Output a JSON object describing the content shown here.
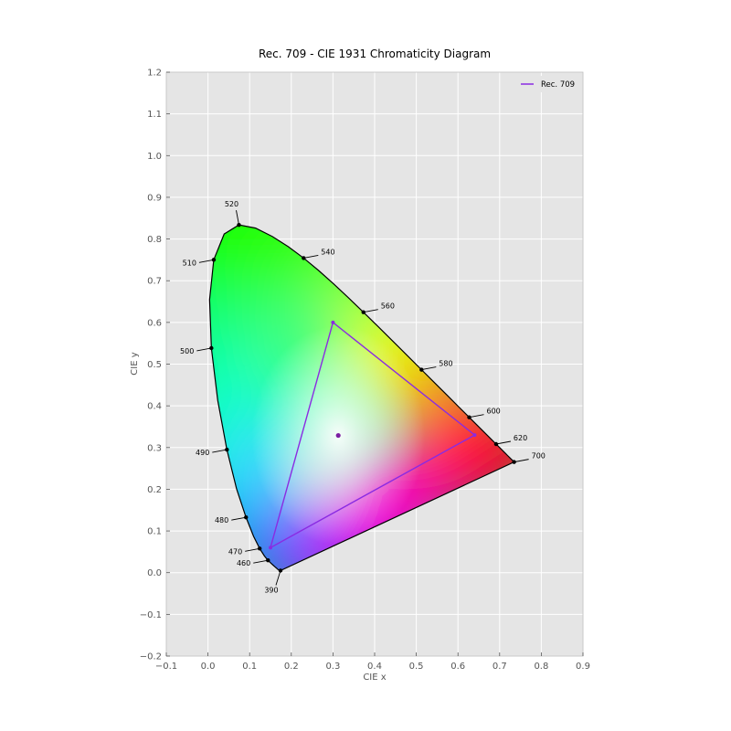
{
  "chart_data": {
    "type": "scatter",
    "title": "Rec. 709 - CIE 1931 Chromaticity Diagram",
    "xlabel": "CIE x",
    "ylabel": "CIE y",
    "xlim": [
      -0.1,
      0.9
    ],
    "ylim": [
      -0.2,
      1.2
    ],
    "x_ticks": [
      "−0.1",
      "0.0",
      "0.1",
      "0.2",
      "0.3",
      "0.4",
      "0.5",
      "0.6",
      "0.7",
      "0.8",
      "0.9"
    ],
    "y_ticks": [
      "−0.2",
      "−0.1",
      "0.0",
      "0.1",
      "0.2",
      "0.3",
      "0.4",
      "0.5",
      "0.6",
      "0.7",
      "0.8",
      "0.9",
      "1.0",
      "1.1",
      "1.2"
    ],
    "grid": true,
    "legend_position": "top-right",
    "spectral_locus": [
      [
        0.1741,
        0.005
      ],
      [
        0.174,
        0.005
      ],
      [
        0.1738,
        0.0049
      ],
      [
        0.1736,
        0.0049
      ],
      [
        0.1733,
        0.0048
      ],
      [
        0.173,
        0.0048
      ],
      [
        0.1726,
        0.0048
      ],
      [
        0.1721,
        0.0048
      ],
      [
        0.1714,
        0.0051
      ],
      [
        0.1703,
        0.0058
      ],
      [
        0.1689,
        0.0069
      ],
      [
        0.1669,
        0.0086
      ],
      [
        0.1644,
        0.0109
      ],
      [
        0.1611,
        0.0138
      ],
      [
        0.1566,
        0.0177
      ],
      [
        0.151,
        0.0227
      ],
      [
        0.144,
        0.0297
      ],
      [
        0.1355,
        0.0399
      ],
      [
        0.1241,
        0.0578
      ],
      [
        0.1096,
        0.0868
      ],
      [
        0.0913,
        0.1327
      ],
      [
        0.0687,
        0.2007
      ],
      [
        0.0454,
        0.295
      ],
      [
        0.0235,
        0.4127
      ],
      [
        0.0082,
        0.5384
      ],
      [
        0.0039,
        0.6548
      ],
      [
        0.0139,
        0.7502
      ],
      [
        0.0389,
        0.812
      ],
      [
        0.0743,
        0.8338
      ],
      [
        0.1142,
        0.8262
      ],
      [
        0.1547,
        0.8059
      ],
      [
        0.1929,
        0.7816
      ],
      [
        0.2296,
        0.7543
      ],
      [
        0.2658,
        0.7243
      ],
      [
        0.3016,
        0.6923
      ],
      [
        0.3373,
        0.6589
      ],
      [
        0.3731,
        0.6245
      ],
      [
        0.4087,
        0.5896
      ],
      [
        0.4441,
        0.5547
      ],
      [
        0.4788,
        0.5202
      ],
      [
        0.5125,
        0.4866
      ],
      [
        0.5448,
        0.4544
      ],
      [
        0.5752,
        0.4242
      ],
      [
        0.6029,
        0.3965
      ],
      [
        0.627,
        0.3725
      ],
      [
        0.6482,
        0.3514
      ],
      [
        0.6658,
        0.334
      ],
      [
        0.6801,
        0.3197
      ],
      [
        0.6915,
        0.3083
      ],
      [
        0.7006,
        0.2993
      ],
      [
        0.7079,
        0.292
      ],
      [
        0.714,
        0.2859
      ],
      [
        0.719,
        0.2809
      ],
      [
        0.723,
        0.277
      ],
      [
        0.726,
        0.274
      ],
      [
        0.7283,
        0.2717
      ],
      [
        0.73,
        0.27
      ],
      [
        0.7311,
        0.2689
      ],
      [
        0.732,
        0.268
      ],
      [
        0.7327,
        0.2673
      ],
      [
        0.7334,
        0.2666
      ],
      [
        0.734,
        0.266
      ],
      [
        0.7344,
        0.2656
      ],
      [
        0.7346,
        0.2654
      ],
      [
        0.7347,
        0.2653
      ]
    ],
    "wavelength_labels": [
      {
        "label": "390",
        "x": 0.1741,
        "y": 0.005,
        "dir": "down"
      },
      {
        "label": "460",
        "x": 0.144,
        "y": 0.0297,
        "dir": "left"
      },
      {
        "label": "470",
        "x": 0.1241,
        "y": 0.0578,
        "dir": "left"
      },
      {
        "label": "480",
        "x": 0.0913,
        "y": 0.1327,
        "dir": "left"
      },
      {
        "label": "490",
        "x": 0.0454,
        "y": 0.295,
        "dir": "left"
      },
      {
        "label": "500",
        "x": 0.0082,
        "y": 0.5384,
        "dir": "left"
      },
      {
        "label": "510",
        "x": 0.0139,
        "y": 0.7502,
        "dir": "left"
      },
      {
        "label": "520",
        "x": 0.0743,
        "y": 0.8338,
        "dir": "up"
      },
      {
        "label": "540",
        "x": 0.2296,
        "y": 0.7543,
        "dir": "right"
      },
      {
        "label": "560",
        "x": 0.3731,
        "y": 0.6245,
        "dir": "right"
      },
      {
        "label": "580",
        "x": 0.5125,
        "y": 0.4866,
        "dir": "right"
      },
      {
        "label": "600",
        "x": 0.627,
        "y": 0.3725,
        "dir": "right"
      },
      {
        "label": "620",
        "x": 0.6915,
        "y": 0.3083,
        "dir": "right"
      },
      {
        "label": "700",
        "x": 0.7347,
        "y": 0.2653,
        "dir": "right"
      }
    ],
    "series": [
      {
        "name": "Rec. 709",
        "type": "triangle",
        "points": [
          [
            0.64,
            0.33
          ],
          [
            0.3,
            0.6
          ],
          [
            0.15,
            0.06
          ]
        ],
        "color": "#8a2be2"
      }
    ],
    "whitepoint": {
      "x": 0.3127,
      "y": 0.329,
      "color": "#7b1fa2"
    }
  },
  "colors": {
    "plot_background": "#e5e5e5",
    "grid": "#ffffff",
    "locus_stroke": "#000000",
    "triangle_stroke": "#8a2be2"
  }
}
